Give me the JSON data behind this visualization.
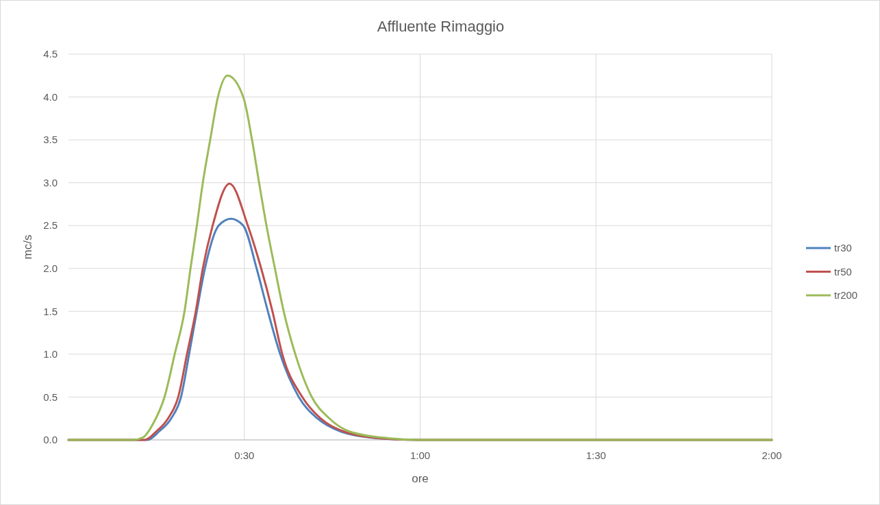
{
  "chart_data": {
    "type": "line",
    "title": "Affluente Rimaggio",
    "xlabel": "ore",
    "ylabel": "mc/s",
    "xlim": [
      0,
      2
    ],
    "xticks": [
      {
        "value": 0.5,
        "label": "0:30"
      },
      {
        "value": 1,
        "label": "1:00"
      },
      {
        "value": 1.5,
        "label": "1:30"
      },
      {
        "value": 2,
        "label": "2:00"
      }
    ],
    "ylim": [
      0,
      4.5
    ],
    "yticks": [
      {
        "value": 0,
        "label": "0.0"
      },
      {
        "value": 0.5,
        "label": "0.5"
      },
      {
        "value": 1,
        "label": "1.0"
      },
      {
        "value": 1.5,
        "label": "1.5"
      },
      {
        "value": 2,
        "label": "2.0"
      },
      {
        "value": 2.5,
        "label": "2.5"
      },
      {
        "value": 3,
        "label": "3.0"
      },
      {
        "value": 3.5,
        "label": "3.5"
      },
      {
        "value": 4,
        "label": "4.0"
      },
      {
        "value": 4.5,
        "label": "4.5"
      }
    ],
    "grid": true,
    "legend": "right",
    "marker": "none",
    "line_style": "solid",
    "series": [
      {
        "name": "tr30",
        "color": "#4f81bd",
        "x": [
          0,
          0.225,
          0.258,
          0.292,
          0.32,
          0.343,
          0.365,
          0.388,
          0.427,
          0.462,
          0.497,
          0.535,
          0.567,
          0.602,
          0.655,
          0.708,
          0.773,
          0.877,
          1,
          2
        ],
        "values": [
          0,
          0,
          0.1,
          0.25,
          0.5,
          1,
          1.5,
          2,
          2.5,
          2.58,
          2.5,
          2,
          1.5,
          1,
          0.5,
          0.25,
          0.1,
          0.02,
          0,
          0
        ]
      },
      {
        "name": "tr50",
        "color": "#c0504d",
        "x": [
          0,
          0.217,
          0.25,
          0.283,
          0.312,
          0.337,
          0.362,
          0.382,
          0.41,
          0.458,
          0.51,
          0.548,
          0.58,
          0.608,
          0.665,
          0.717,
          0.782,
          0.882,
          1,
          2
        ],
        "values": [
          0,
          0,
          0.1,
          0.25,
          0.5,
          1,
          1.5,
          2,
          2.5,
          2.99,
          2.5,
          2,
          1.5,
          1,
          0.5,
          0.25,
          0.1,
          0.02,
          0,
          0
        ]
      },
      {
        "name": "tr200",
        "color": "#9bbb59",
        "x": [
          0,
          0.183,
          0.212,
          0.242,
          0.273,
          0.302,
          0.33,
          0.347,
          0.365,
          0.382,
          0.403,
          0.425,
          0.452,
          0.497,
          0.522,
          0.542,
          0.563,
          0.587,
          0.612,
          0.645,
          0.692,
          0.742,
          0.798,
          0.908,
          1,
          2
        ],
        "values": [
          0,
          0,
          0.03,
          0.2,
          0.5,
          1,
          1.5,
          2,
          2.5,
          3,
          3.5,
          4,
          4.25,
          4,
          3.5,
          3,
          2.5,
          2,
          1.5,
          1,
          0.5,
          0.25,
          0.1,
          0.02,
          0,
          0
        ]
      }
    ]
  }
}
